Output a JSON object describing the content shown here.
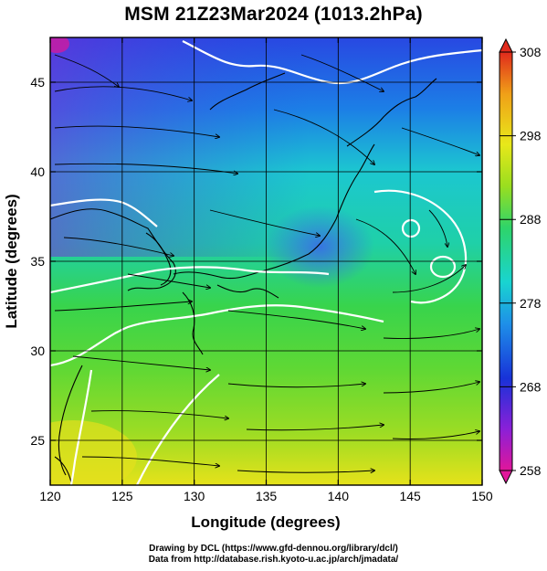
{
  "title": "MSM 21Z23Mar2024 (1013.2hPa)",
  "credits": {
    "line1": "Drawing by DCL (https://www.gfd-dennou.org/library/dcl/)",
    "line2": "Data from http://database.rish.kyoto-u.ac.jp/arch/jmadata/"
  },
  "chart_data": {
    "type": "heatmap",
    "description_variable": "temperature (K) with wind streamlines",
    "xlabel": "Longitude (degrees)",
    "ylabel": "Latitude  (degrees)",
    "xlim": [
      120,
      150
    ],
    "ylim": [
      22.5,
      47.5
    ],
    "x_ticks": [
      120,
      125,
      130,
      135,
      140,
      145,
      150
    ],
    "y_ticks": [
      25,
      30,
      35,
      40,
      45
    ],
    "grid": true,
    "colorbar": {
      "min": 258,
      "max": 308,
      "tick_values": [
        258,
        268,
        278,
        288,
        298,
        308
      ],
      "tick_labels": [
        "258",
        "268",
        "278",
        "288",
        "298",
        "308"
      ],
      "colors": [
        "#e0169a",
        "#7a1fd6",
        "#1832d8",
        "#1e8fe8",
        "#19d4d0",
        "#2ed46a",
        "#9ade1f",
        "#e8e81a",
        "#f0a018",
        "#e02a1c"
      ]
    },
    "colors": {
      "warm": "#f2e614",
      "mild": "#5ad63a",
      "cool": "#22cfc8",
      "cold": "#2a58e6",
      "very_cold": "#6a2ad8",
      "land": "#000000",
      "contour": "#ffffff"
    }
  }
}
